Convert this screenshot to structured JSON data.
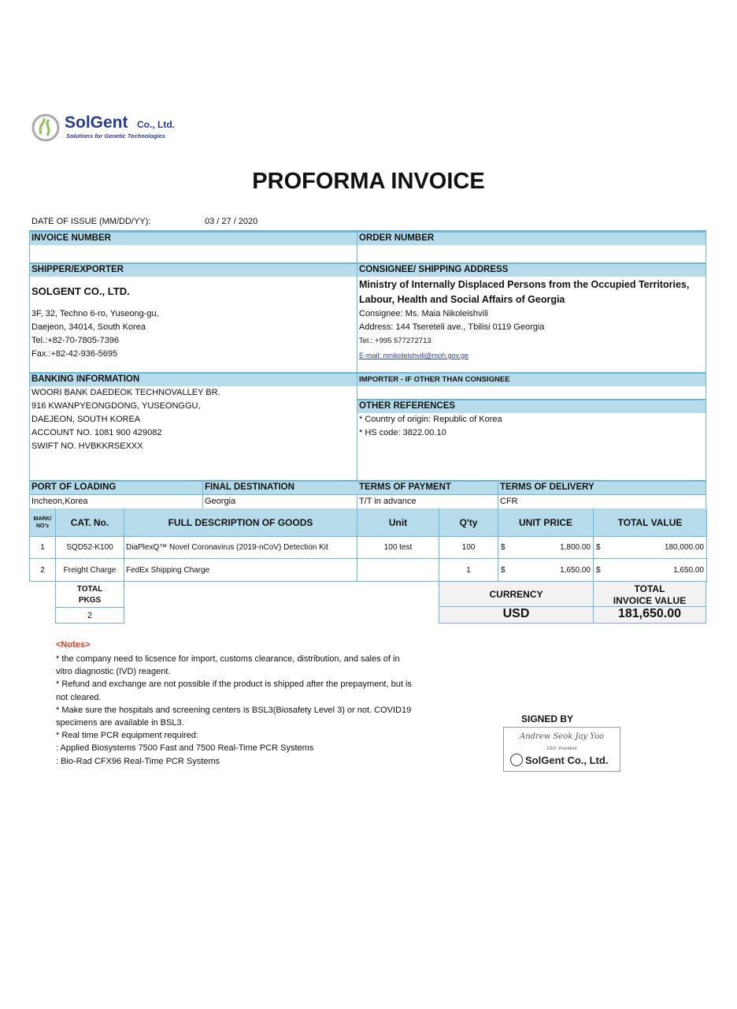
{
  "logo": {
    "name": "SolGent",
    "suffix": "Co., Ltd.",
    "tagline": "Solutions for Genetic Technologies"
  },
  "title": "PROFORMA INVOICE",
  "date": {
    "label": "DATE OF ISSUE (MM/DD/YY):",
    "value": "03 / 27 / 2020"
  },
  "invoice_number": {
    "label": "INVOICE NUMBER",
    "value": ""
  },
  "order_number": {
    "label": "ORDER NUMBER",
    "value": ""
  },
  "shipper": {
    "label": "SHIPPER/EXPORTER",
    "name": "SOLGENT CO., LTD.",
    "lines": [
      "3F, 32, Techno 6-ro, Yuseong-gu,",
      "Daejeon, 34014, South Korea",
      "Tel.:+82-70-7805-7396",
      "Fax.:+82-42-936-5695"
    ]
  },
  "consignee": {
    "label": "CONSIGNEE/ SHIPPING ADDRESS",
    "org": [
      "Ministry of Internally Displaced Persons from the Occupied Territories,",
      "Labour, Health and Social Affairs of Georgia"
    ],
    "lines": [
      "Consignee: Ms. Maia Nikoleishvili",
      "Address: 144 Tsereteli ave., Tbilisi 0119 Georgia"
    ],
    "tel": "Tel.: +995 577272713",
    "email": "E-mail: mnikoleishvili@moh.gov.ge"
  },
  "banking": {
    "label": "BANKING INFORMATION",
    "lines": [
      "WOORI BANK DAEDEOK TECHNOVALLEY BR.",
      "916 KWANPYEONGDONG, YUSEONGGU,",
      "DAEJEON, SOUTH KOREA",
      "ACCOUNT NO. 1081 900 429082",
      "SWIFT NO. HVBKKRSEXXX"
    ]
  },
  "importer": {
    "label": "IMPORTER - IF OTHER THAN CONSIGNEE",
    "value": ""
  },
  "other_refs": {
    "label": "OTHER REFERENCES",
    "lines": [
      "* Country of origin: Republic of Korea",
      "* HS code: 3822.00.10"
    ]
  },
  "shipping": {
    "port_label": "PORT OF LOADING",
    "port": "Incheon,Korea",
    "dest_label": "FINAL DESTINATION",
    "dest": "Georgia",
    "payment_label": "TERMS OF PAYMENT",
    "payment": "T/T in advance",
    "delivery_label": "TERMS OF DELIVERY",
    "delivery": "CFR"
  },
  "goods": {
    "headers": [
      "MARK/ NO's",
      "CAT. No.",
      "FULL DESCRIPTION OF GOODS",
      "Unit",
      "Q'ty",
      "UNIT PRICE",
      "TOTAL VALUE"
    ],
    "rows": [
      {
        "mark": "1",
        "cat": "SQD52-K100",
        "desc": "DiaPlexQ™ Novel Coronavirus (2019-nCoV) Detection Kit",
        "unit": "100 test",
        "qty": "100",
        "cur": "$",
        "price": "1,800.00",
        "cur2": "$",
        "total": "180,000.00"
      },
      {
        "mark": "2",
        "cat": "Freight Charge",
        "desc": "FedEx Shipping Charge",
        "unit": "",
        "qty": "1",
        "cur": "$",
        "price": "1,650.00",
        "cur2": "$",
        "total": "1,650.00"
      }
    ]
  },
  "totals": {
    "pkgs_label1": "TOTAL",
    "pkgs_label2": "PKGS",
    "pkgs": "2",
    "currency_label": "CURRENCY",
    "currency": "USD",
    "total_label1": "TOTAL",
    "total_label2": "INVOICE VALUE",
    "total": "181,650.00"
  },
  "notes": {
    "title": "<Notes>",
    "lines": [
      "* the company need to licsence for import, customs clearance, distribution, and sales of in",
      "vitro diagnostic (IVD) reagent.",
      "* Refund and exchange are not possible if the product is shipped after the prepayment, but is",
      "not cleared.",
      "* Make sure the hospitals and screening centers is BSL3(Biosafety Level 3) or not. COVID19",
      "specimens are available in BSL3.",
      "* Real time PCR equipment required:",
      ": Applied Biosystems 7500 Fast and  7500 Real-Time PCR Systems",
      ": Bio-Rad CFX96 Real-Time PCR Systems"
    ]
  },
  "signature": {
    "label": "SIGNED BY",
    "signature_text": "Andrew Seok  Jay Yoo",
    "role": "CEO. President",
    "company": "SolGent Co., Ltd."
  },
  "colors": {
    "header_bg": "#b6dcec",
    "border": "#6db4d8",
    "notes_title": "#e03a1e",
    "logo_blue": "#283c96"
  }
}
